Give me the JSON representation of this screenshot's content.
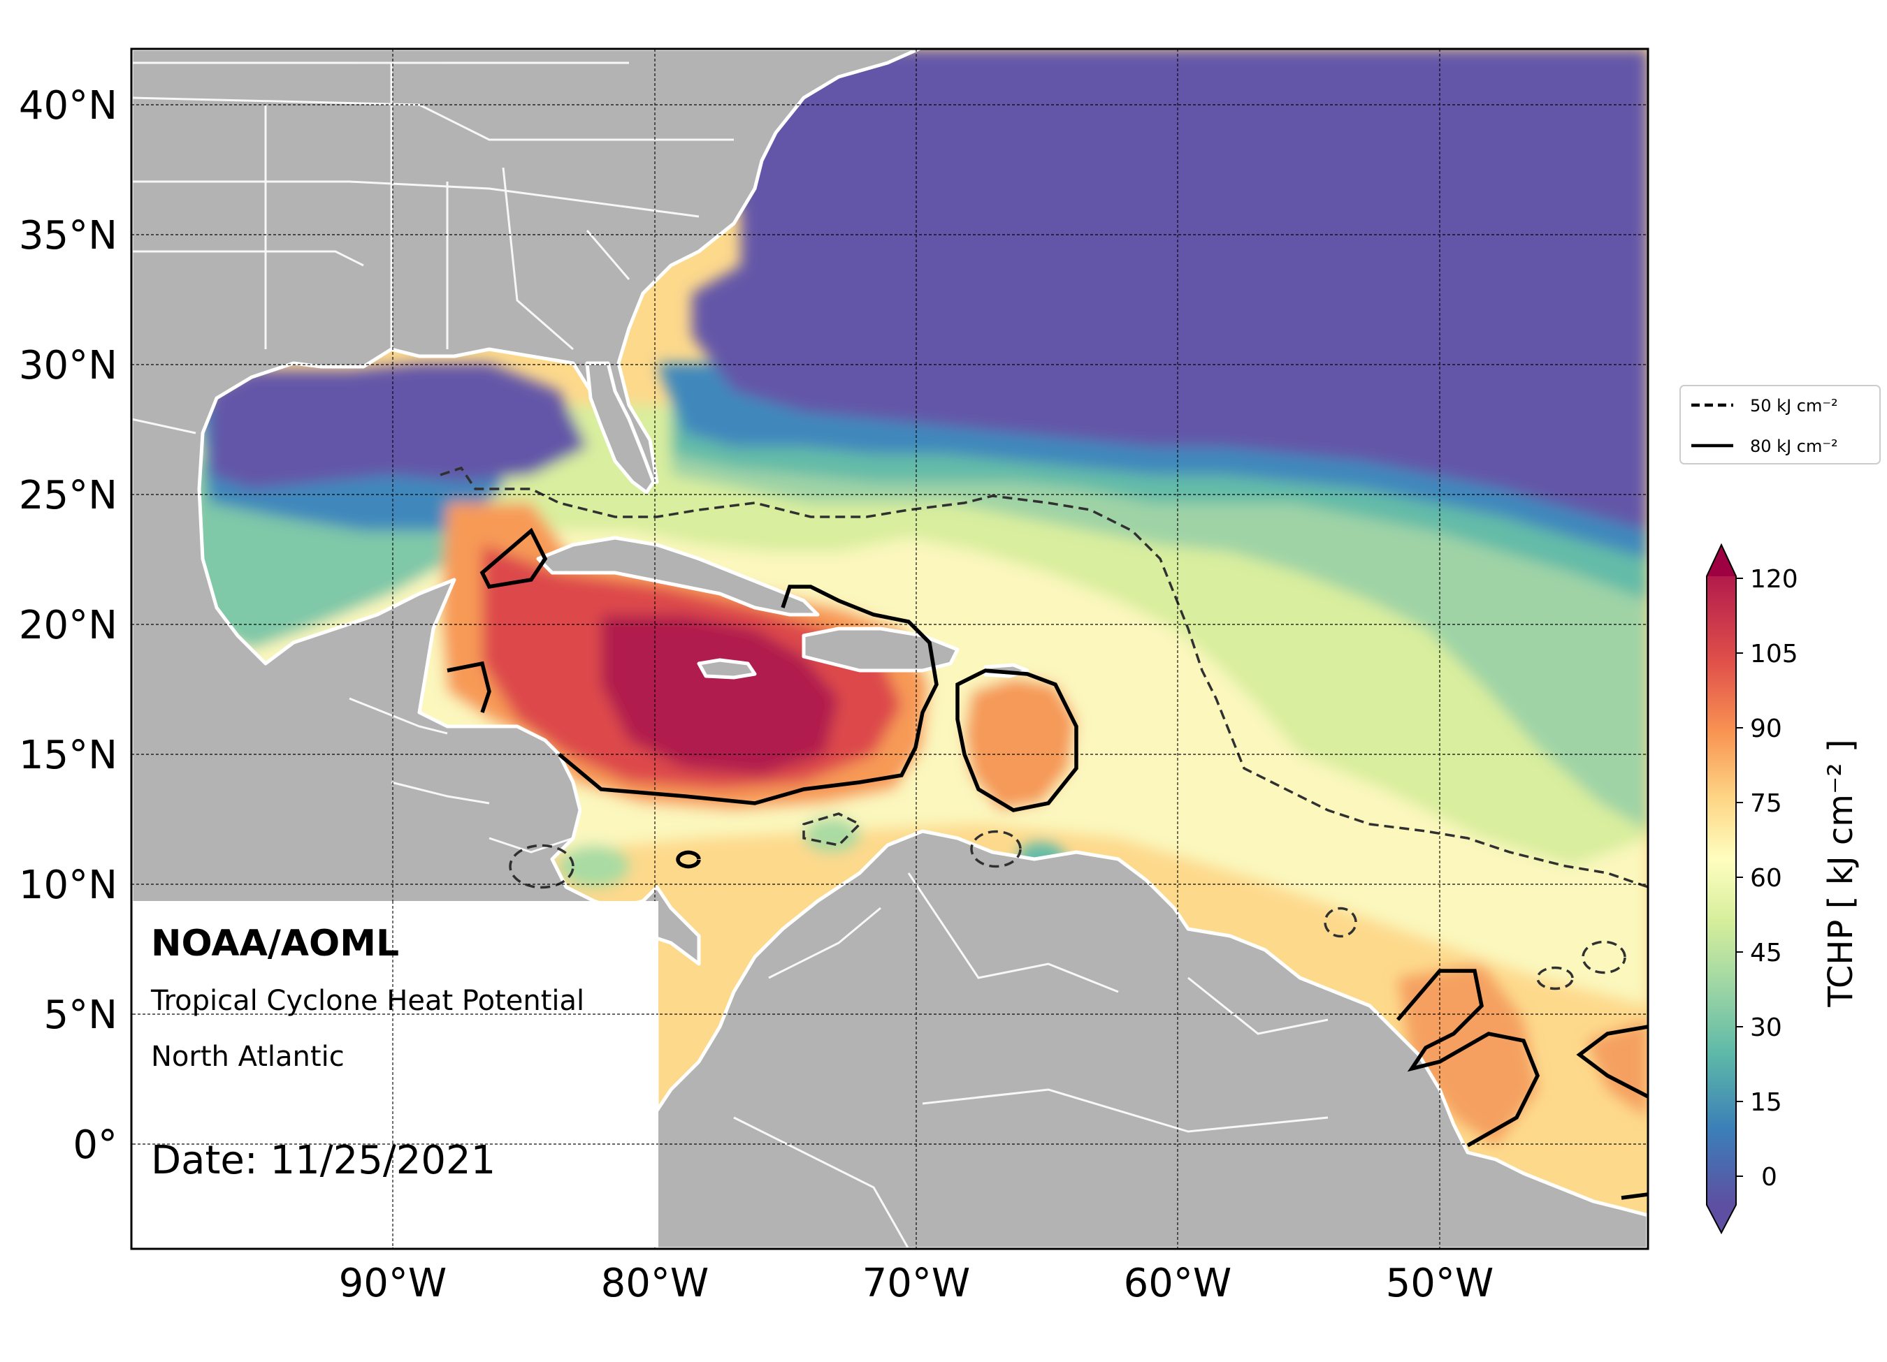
{
  "figure": {
    "header": "NOAA/AOML",
    "line1": "Tropical Cyclone Heat Potential",
    "line2": "North Atlantic",
    "date_label": "Date: 11/25/2021"
  },
  "map_axes": {
    "lat_ticks": [
      "40°N",
      "35°N",
      "30°N",
      "25°N",
      "20°N",
      "15°N",
      "10°N",
      "5°N",
      "0°"
    ],
    "lon_ticks": [
      "90°W",
      "80°W",
      "70°W",
      "60°W",
      "50°W"
    ],
    "lon_range": [
      -100,
      -42
    ],
    "lat_range": [
      -4,
      42
    ],
    "gridlines": true
  },
  "legend": {
    "items": [
      {
        "label": "50 kJ cm⁻²",
        "style": "dashed"
      },
      {
        "label": "80 kJ cm⁻²",
        "style": "solid"
      }
    ]
  },
  "colorbar": {
    "label": "TCHP [ kJ cm⁻² ]",
    "ticks": [
      "120",
      "105",
      "90",
      "75",
      "60",
      "45",
      "30",
      "15",
      "0"
    ],
    "colors": [
      "#5e4fa2",
      "#3b7fb8",
      "#5db9a8",
      "#9fd6a4",
      "#d5ee9b",
      "#fffebf",
      "#fdd484",
      "#f99553",
      "#e1524a",
      "#b31b4c",
      "#9e0142"
    ]
  },
  "colors": {
    "land": "#b3b3b3",
    "borders": "#ffffff",
    "cold": "#6356a8",
    "warmest": "#b01a4e"
  }
}
